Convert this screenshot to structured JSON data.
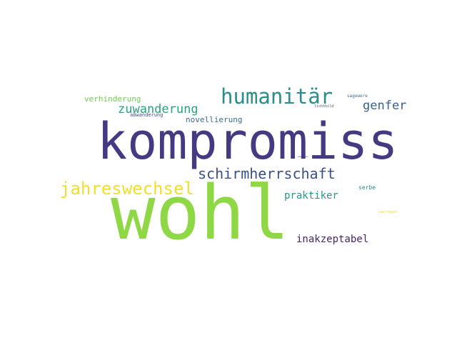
{
  "words": [
    {
      "text": "kompromiss",
      "color": "#453a82"
    },
    {
      "text": "wohl",
      "color": "#8fd845"
    },
    {
      "text": "humanitär",
      "color": "#2a8e8b"
    },
    {
      "text": "schirmherrschaft",
      "color": "#3b5088"
    },
    {
      "text": "jahreswechsel",
      "color": "#f0df2c"
    },
    {
      "text": "zuwanderung",
      "color": "#27a37f"
    },
    {
      "text": "genfer",
      "color": "#36608e"
    },
    {
      "text": "praktiker",
      "color": "#22998b"
    },
    {
      "text": "inakzeptabel",
      "color": "#46256b"
    },
    {
      "text": "verhinderung",
      "color": "#75cb54"
    },
    {
      "text": "novellierung",
      "color": "#3b6e8c"
    },
    {
      "text": "abwanderung",
      "color": "#3c4f87"
    },
    {
      "text": "sagewere",
      "color": "#3f6f8e"
    },
    {
      "text": "lichtbild",
      "color": "#445588"
    },
    {
      "text": "serbe",
      "color": "#2f8a8c"
    },
    {
      "text": "lawrragen",
      "color": "#e9dc3c"
    },
    {
      "text": "empreeen",
      "color": "#3d3d80"
    }
  ]
}
